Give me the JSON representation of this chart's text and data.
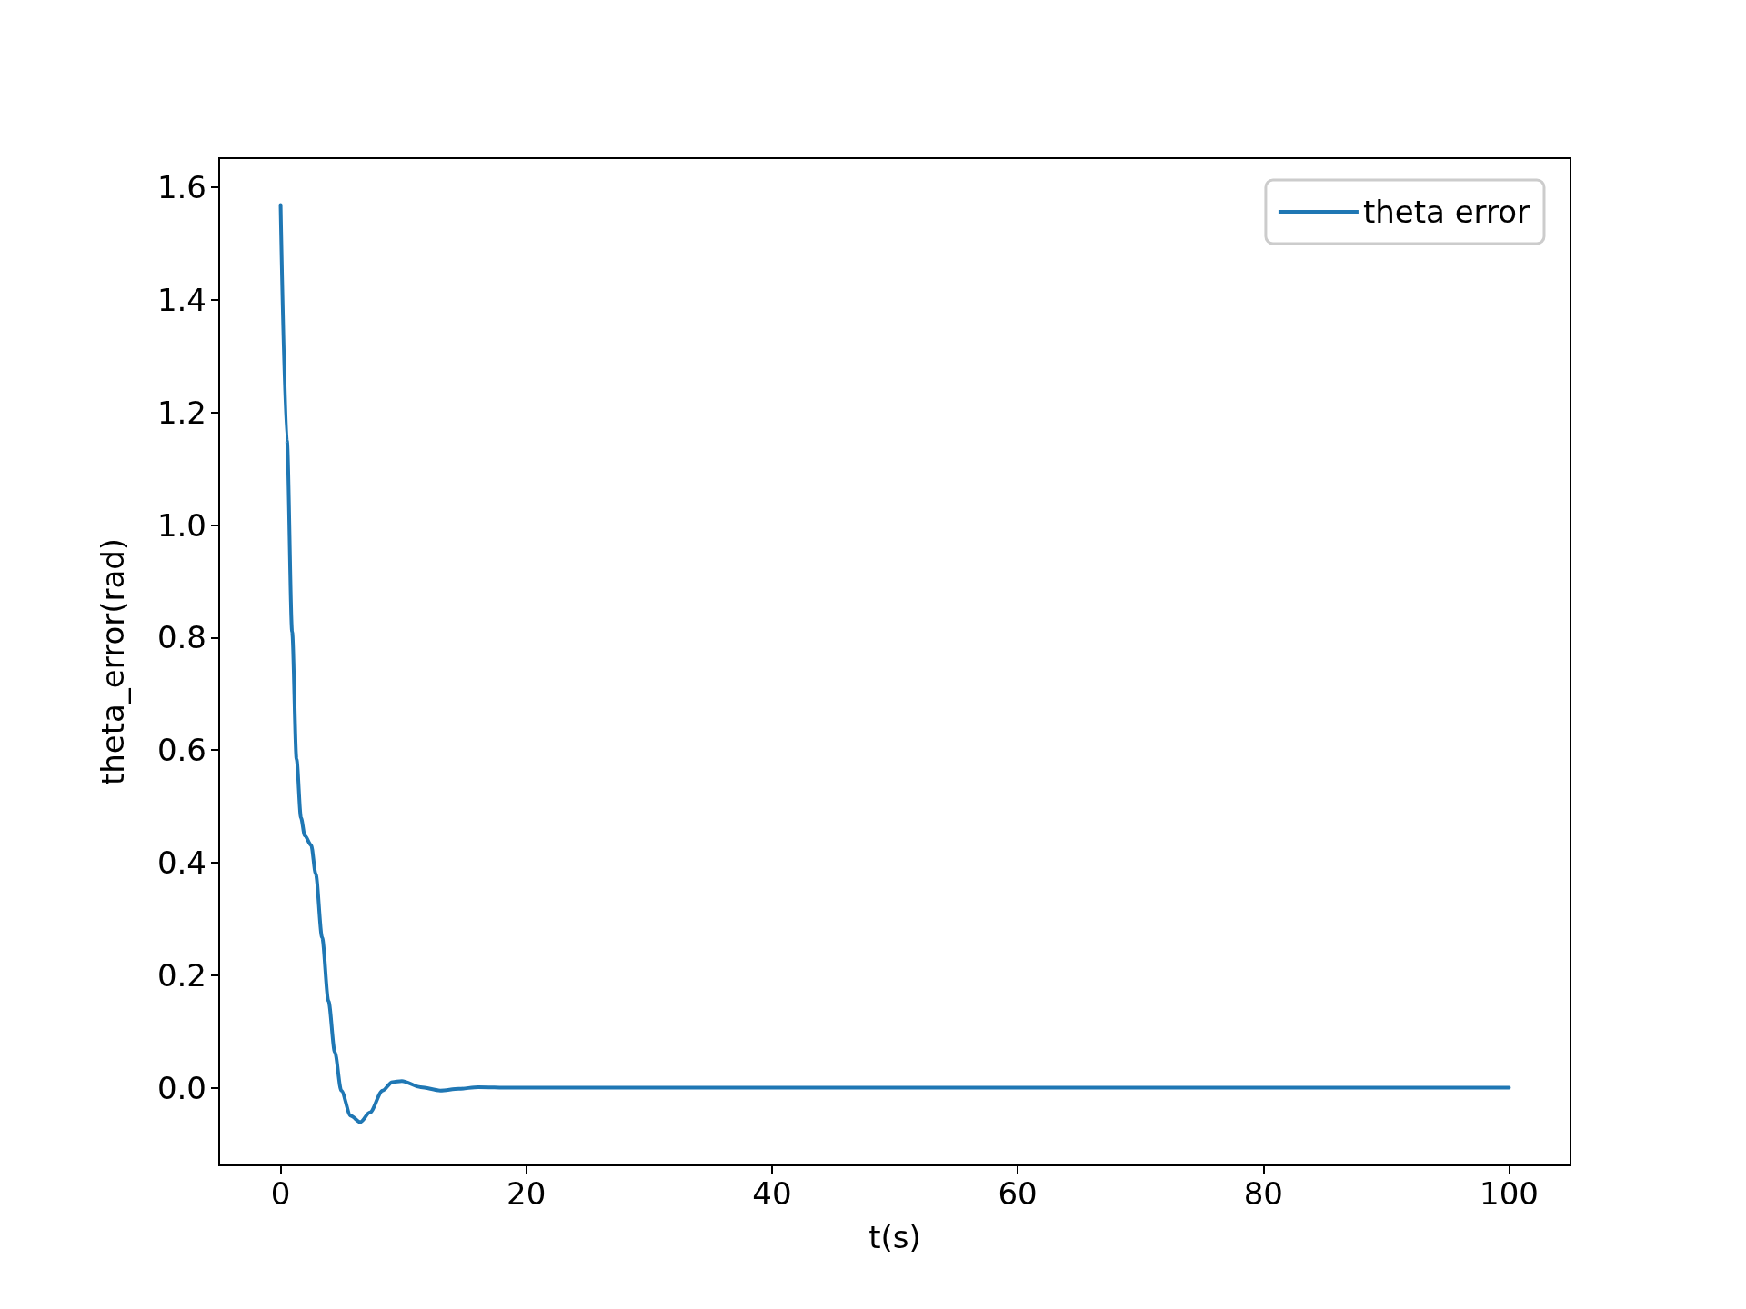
{
  "chart_data": {
    "type": "line",
    "xlabel": "t(s)",
    "ylabel": "theta_error(rad)",
    "series": [
      {
        "name": "theta error",
        "color": "#1f77b4",
        "x": [
          0,
          0.52,
          0.94,
          1.3,
          1.66,
          1.97,
          2.49,
          2.86,
          3.38,
          3.9,
          4.42,
          4.94,
          5.71,
          6.49,
          7.27,
          8.31,
          9.09,
          9.87,
          11.4,
          13.0,
          14.5,
          16.1,
          18.7,
          20,
          30,
          40,
          50,
          60,
          70,
          80,
          90,
          100
        ],
        "values": [
          1.569,
          1.15,
          0.81,
          0.584,
          0.48,
          0.448,
          0.431,
          0.38,
          0.267,
          0.154,
          0.063,
          -0.005,
          -0.05,
          -0.061,
          -0.044,
          -0.005,
          0.01,
          0.012,
          0.001,
          -0.005,
          -0.002,
          0.001,
          0,
          0,
          0,
          0,
          0,
          0,
          0,
          0,
          0,
          0
        ]
      }
    ],
    "xlim": [
      -5,
      105
    ],
    "xticks": [
      0,
      20,
      40,
      60,
      80,
      100
    ],
    "ylim": [
      -0.138,
      1.652
    ],
    "yticks": [
      {
        "value": 0,
        "label": "0.0"
      },
      {
        "value": 0.2,
        "label": "0.2"
      },
      {
        "value": 0.4,
        "label": "0.4"
      },
      {
        "value": 0.6,
        "label": "0.6"
      },
      {
        "value": 0.8,
        "label": "0.8"
      },
      {
        "value": 1,
        "label": "1.0"
      },
      {
        "value": 1.2,
        "label": "1.2"
      },
      {
        "value": 1.4,
        "label": "1.4"
      },
      {
        "value": 1.6,
        "label": "1.6"
      }
    ],
    "grid": false,
    "legend": "top right",
    "marker": "none",
    "line_style": "solid"
  }
}
